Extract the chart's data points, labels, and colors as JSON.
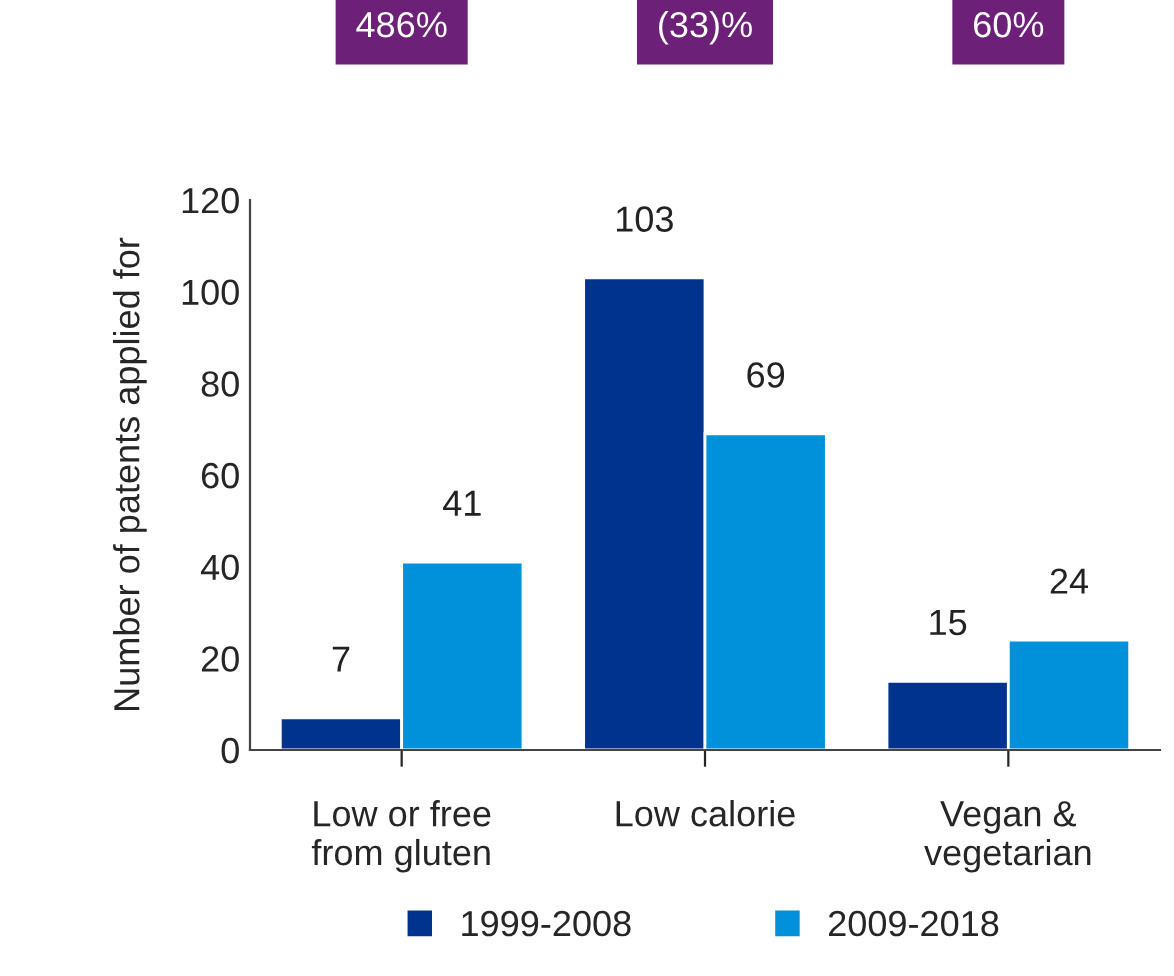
{
  "chart_data": {
    "type": "bar",
    "ylabel": "Number of patents applied for",
    "categories": [
      "Low or free\nfrom gluten",
      "Low calorie",
      "Vegan &\nvegetarian"
    ],
    "series": [
      {
        "name": "1999-2008",
        "color": "#00338d",
        "values": [
          7,
          103,
          15
        ]
      },
      {
        "name": "2009-2018",
        "color": "#0091da",
        "values": [
          41,
          69,
          24
        ]
      }
    ],
    "ylim": [
      0,
      120
    ],
    "yticks": [
      0,
      20,
      40,
      60,
      80,
      100,
      120
    ],
    "data_labels": true,
    "grid": false,
    "legend": "bottom",
    "annotations": [
      "486%",
      "(33)%",
      "60%"
    ]
  }
}
